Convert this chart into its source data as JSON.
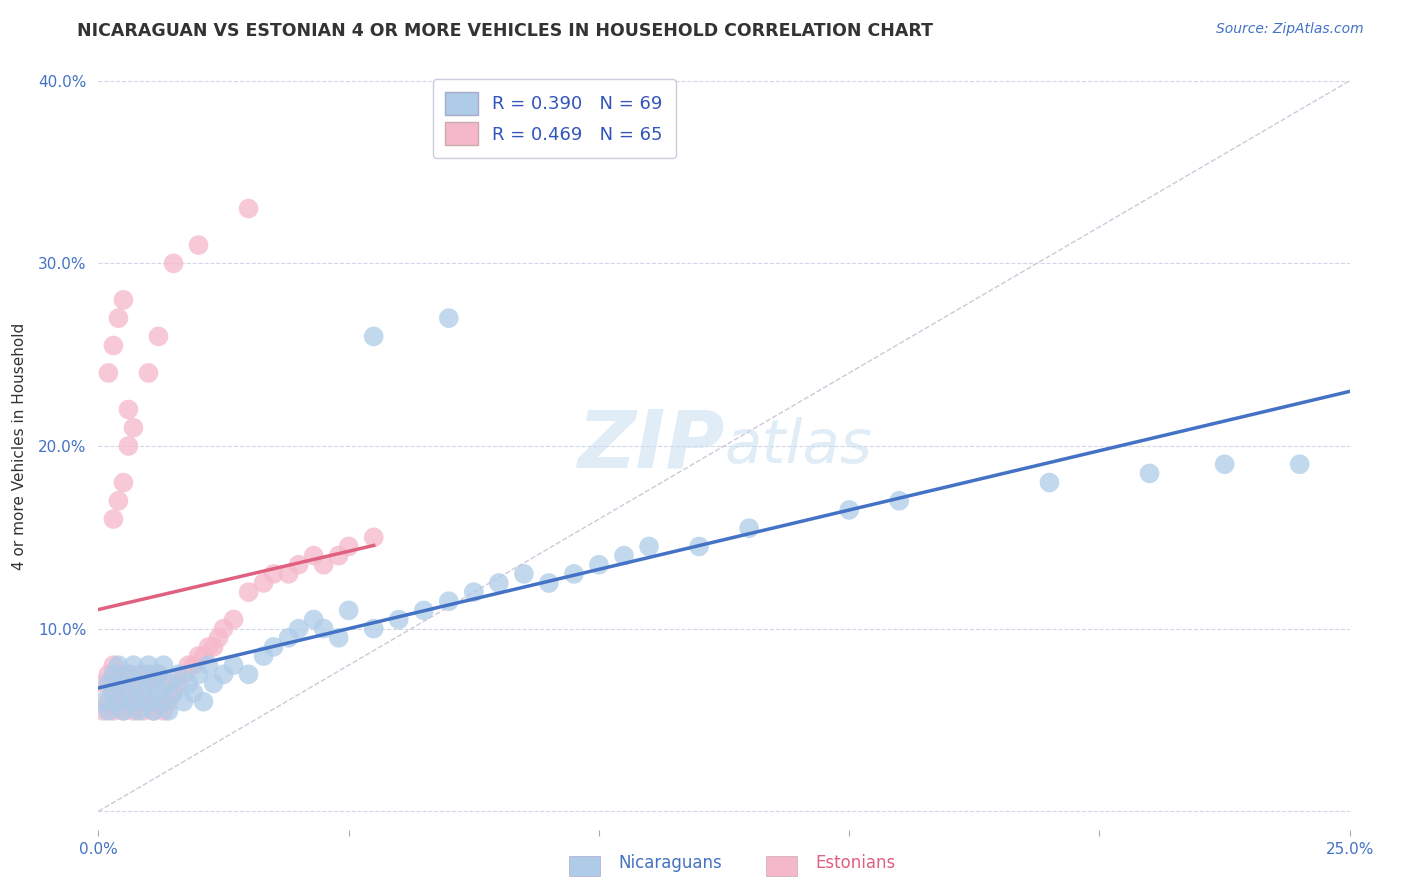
{
  "title": "NICARAGUAN VS ESTONIAN 4 OR MORE VEHICLES IN HOUSEHOLD CORRELATION CHART",
  "source_text": "Source: ZipAtlas.com",
  "ylabel": "4 or more Vehicles in Household",
  "xlabel_nicaraguan": "Nicaraguans",
  "xlabel_estonian": "Estonians",
  "xmin": 0.0,
  "xmax": 0.25,
  "ymin": -0.01,
  "ymax": 0.41,
  "x_ticks": [
    0.0,
    0.05,
    0.1,
    0.15,
    0.2,
    0.25
  ],
  "x_tick_labels": [
    "0.0%",
    "",
    "",
    "",
    "",
    "25.0%"
  ],
  "y_ticks": [
    0.0,
    0.1,
    0.2,
    0.3,
    0.4
  ],
  "y_tick_labels": [
    "",
    "10.0%",
    "20.0%",
    "30.0%",
    "40.0%"
  ],
  "nicaraguan_color": "#aecce8",
  "estonian_color": "#f5b8ca",
  "nicaraguan_line_color": "#4472c4",
  "estonian_line_color": "#e06080",
  "diagonal_color": "#cccccc",
  "R_nicaraguan": 0.39,
  "N_nicaraguan": 69,
  "R_estonian": 0.469,
  "N_estonian": 65,
  "watermark_zip": "ZIP",
  "watermark_atlas": "atlas",
  "legend_color": "#3355bb",
  "source_color": "#4472c4",
  "tick_color": "#4472c4",
  "nic_x": [
    0.001,
    0.002,
    0.002,
    0.003,
    0.003,
    0.004,
    0.004,
    0.005,
    0.005,
    0.006,
    0.006,
    0.007,
    0.007,
    0.008,
    0.008,
    0.009,
    0.009,
    0.01,
    0.01,
    0.011,
    0.011,
    0.012,
    0.012,
    0.013,
    0.013,
    0.014,
    0.014,
    0.015,
    0.016,
    0.017,
    0.018,
    0.019,
    0.02,
    0.021,
    0.022,
    0.023,
    0.025,
    0.027,
    0.03,
    0.033,
    0.035,
    0.038,
    0.04,
    0.043,
    0.045,
    0.048,
    0.05,
    0.055,
    0.06,
    0.065,
    0.07,
    0.075,
    0.08,
    0.085,
    0.09,
    0.095,
    0.1,
    0.105,
    0.11,
    0.12,
    0.13,
    0.15,
    0.16,
    0.19,
    0.21,
    0.225,
    0.24,
    0.055,
    0.07
  ],
  "nic_y": [
    0.06,
    0.055,
    0.07,
    0.065,
    0.075,
    0.06,
    0.08,
    0.055,
    0.07,
    0.065,
    0.075,
    0.06,
    0.08,
    0.055,
    0.07,
    0.065,
    0.075,
    0.06,
    0.08,
    0.055,
    0.07,
    0.065,
    0.075,
    0.06,
    0.08,
    0.055,
    0.07,
    0.065,
    0.075,
    0.06,
    0.07,
    0.065,
    0.075,
    0.06,
    0.08,
    0.07,
    0.075,
    0.08,
    0.075,
    0.085,
    0.09,
    0.095,
    0.1,
    0.105,
    0.1,
    0.095,
    0.11,
    0.1,
    0.105,
    0.11,
    0.115,
    0.12,
    0.125,
    0.13,
    0.125,
    0.13,
    0.135,
    0.14,
    0.145,
    0.145,
    0.155,
    0.165,
    0.17,
    0.18,
    0.185,
    0.19,
    0.19,
    0.26,
    0.27
  ],
  "est_x": [
    0.001,
    0.001,
    0.002,
    0.002,
    0.003,
    0.003,
    0.003,
    0.004,
    0.004,
    0.005,
    0.005,
    0.006,
    0.006,
    0.007,
    0.007,
    0.008,
    0.008,
    0.009,
    0.009,
    0.01,
    0.01,
    0.011,
    0.011,
    0.012,
    0.012,
    0.013,
    0.013,
    0.014,
    0.015,
    0.016,
    0.017,
    0.018,
    0.019,
    0.02,
    0.021,
    0.022,
    0.023,
    0.024,
    0.025,
    0.027,
    0.03,
    0.033,
    0.035,
    0.038,
    0.04,
    0.043,
    0.045,
    0.048,
    0.05,
    0.055,
    0.003,
    0.004,
    0.005,
    0.006,
    0.007,
    0.01,
    0.012,
    0.015,
    0.02,
    0.03,
    0.002,
    0.003,
    0.004,
    0.005,
    0.006
  ],
  "est_y": [
    0.055,
    0.07,
    0.06,
    0.075,
    0.055,
    0.065,
    0.08,
    0.06,
    0.075,
    0.055,
    0.07,
    0.06,
    0.075,
    0.055,
    0.07,
    0.06,
    0.075,
    0.055,
    0.07,
    0.06,
    0.075,
    0.055,
    0.07,
    0.06,
    0.075,
    0.055,
    0.07,
    0.06,
    0.065,
    0.07,
    0.075,
    0.08,
    0.08,
    0.085,
    0.085,
    0.09,
    0.09,
    0.095,
    0.1,
    0.105,
    0.12,
    0.125,
    0.13,
    0.13,
    0.135,
    0.14,
    0.135,
    0.14,
    0.145,
    0.15,
    0.16,
    0.17,
    0.18,
    0.2,
    0.21,
    0.24,
    0.26,
    0.3,
    0.31,
    0.33,
    0.24,
    0.255,
    0.27,
    0.28,
    0.22
  ]
}
